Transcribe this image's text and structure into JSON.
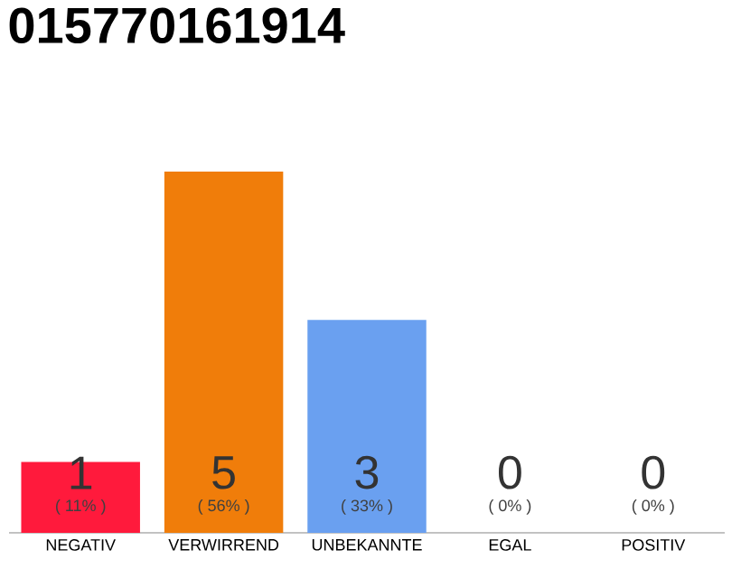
{
  "chart_data": {
    "type": "bar",
    "title": "015770161914",
    "categories": [
      "NEGATIV",
      "VERWIRREND",
      "UNBEKANNTE",
      "EGAL",
      "POSITIV"
    ],
    "colors": [
      "#ff1a3c",
      "#f07d0a",
      "#6aa0f0",
      "#efefef",
      "#efefef"
    ],
    "values": [
      11,
      56,
      33,
      0,
      0
    ],
    "value_labels": [
      "( 11% )",
      "( 56% )",
      "( 33% )",
      "( 0% )",
      "( 0% )"
    ],
    "annotations": [
      "1",
      "5",
      "3",
      "0",
      "0"
    ],
    "tick_labels": "x"
  }
}
